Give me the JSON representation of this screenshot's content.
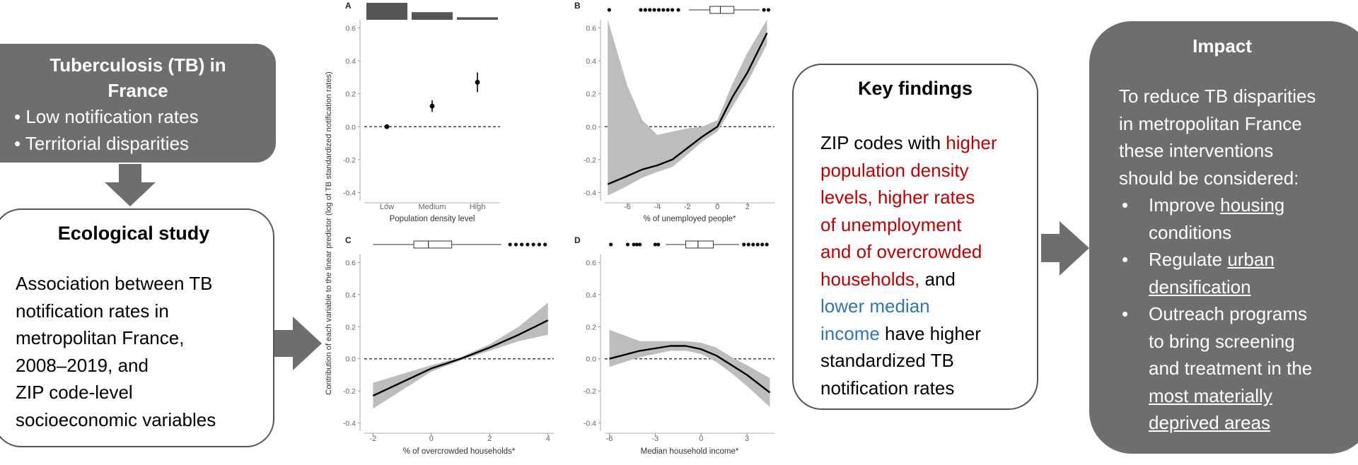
{
  "tb_box": {
    "title_line1": "Tuberculosis (TB) in",
    "title_line2": "France",
    "bullets": [
      "Low notification rates",
      "Territorial disparities"
    ]
  },
  "eco_box": {
    "title": "Ecological study",
    "body_lines": [
      "Association between TB",
      "notification rates in",
      "metropolitan France,",
      "2008–2019,  and",
      "ZIP code-level",
      "socioeconomic variables"
    ]
  },
  "findings_box": {
    "title": "Key findings",
    "lines": [
      [
        {
          "t": "ZIP codes with ",
          "c": "black"
        },
        {
          "t": "higher",
          "c": "red"
        }
      ],
      [
        {
          "t": "population density",
          "c": "red"
        }
      ],
      [
        {
          "t": "levels, higher rates",
          "c": "red"
        }
      ],
      [
        {
          "t": "of unemployment",
          "c": "red"
        }
      ],
      [
        {
          "t": "and of overcrowded",
          "c": "red"
        }
      ],
      [
        {
          "t": "households,",
          "c": "red"
        },
        {
          "t": " and",
          "c": "black"
        }
      ],
      [
        {
          "t": "lower median",
          "c": "blue"
        }
      ],
      [
        {
          "t": "income",
          "c": "blue"
        },
        {
          "t": " have higher",
          "c": "black"
        }
      ],
      [
        {
          "t": "standardized TB",
          "c": "black"
        }
      ],
      [
        {
          "t": "notification rates",
          "c": "black"
        }
      ]
    ]
  },
  "impact_box": {
    "title": "Impact",
    "intro_lines": [
      "To reduce TB disparities",
      "in metropolitan France",
      "these interventions",
      "should be considered:"
    ],
    "bullets": [
      {
        "lines": [
          [
            {
              "t": "Improve ",
              "u": false
            },
            {
              "t": "housing",
              "u": true
            }
          ],
          [
            {
              "t": "conditions",
              "u": false
            }
          ]
        ]
      },
      {
        "lines": [
          [
            {
              "t": "Regulate ",
              "u": false
            },
            {
              "t": "urban",
              "u": true
            }
          ],
          [
            {
              "t": "densification",
              "u": true
            }
          ]
        ]
      },
      {
        "lines": [
          [
            {
              "t": "Outreach programs",
              "u": false
            }
          ],
          [
            {
              "t": "to bring screening",
              "u": false
            }
          ],
          [
            {
              "t": "and treatment in the",
              "u": false
            }
          ],
          [
            {
              "t": "most materially",
              "u": true
            }
          ],
          [
            {
              "t": "deprived areas",
              "u": true
            }
          ]
        ]
      }
    ]
  },
  "y_axis_label": "Contribution of each variable to the linear predictor (log of TB standardized notification rates)",
  "colors": {
    "box_dark": "#6e6e6e",
    "arrow": "#6e6e6e",
    "band": "#bdbdbd",
    "line": "#000000",
    "red": "#c00000",
    "blue": "#2e75b6"
  },
  "chart_data": [
    {
      "panel": "A",
      "type": "scatter",
      "xlabel": "Population density level",
      "categories": [
        "Low",
        "Medium",
        "High"
      ],
      "values": [
        0.0,
        0.125,
        0.27
      ],
      "error_low": [
        0.0,
        0.09,
        0.21
      ],
      "error_high": [
        0.0,
        0.16,
        0.33
      ],
      "top_bar_heights": [
        1.0,
        0.45,
        0.15
      ],
      "ylim": [
        -0.45,
        0.65
      ],
      "yticks": [
        -0.4,
        -0.2,
        0.0,
        0.2,
        0.4,
        0.6
      ]
    },
    {
      "panel": "B",
      "type": "line",
      "xlabel": "% of unemployed people*",
      "xlim": [
        -7.5,
        3.8
      ],
      "xticks": [
        -6,
        -4,
        -2,
        0,
        2
      ],
      "ylim": [
        -0.45,
        0.65
      ],
      "yticks": [
        -0.4,
        -0.2,
        0.0,
        0.2,
        0.4,
        0.6
      ],
      "x": [
        -7.3,
        -6,
        -5,
        -4,
        -3,
        -2,
        -1,
        0,
        1,
        2,
        3.3
      ],
      "y": [
        -0.35,
        -0.3,
        -0.26,
        -0.235,
        -0.2,
        -0.13,
        -0.06,
        0.0,
        0.18,
        0.33,
        0.57
      ],
      "lower": [
        -0.42,
        -0.36,
        -0.31,
        -0.275,
        -0.245,
        -0.17,
        -0.09,
        -0.03,
        0.12,
        0.27,
        0.5
      ],
      "upper": [
        0.66,
        0.25,
        0.04,
        -0.05,
        -0.03,
        -0.01,
        0.0,
        0.04,
        0.26,
        0.45,
        0.66
      ],
      "box": {
        "min": -1.9,
        "q1": -0.5,
        "median": 0.2,
        "q3": 1.1,
        "max": 2.8
      },
      "outliers": [
        -7.2,
        -5.1,
        -4.8,
        -4.5,
        -4.2,
        -3.9,
        -3.6,
        -3.3,
        -3.0,
        -2.6,
        3.1,
        3.4
      ]
    },
    {
      "panel": "C",
      "type": "line",
      "xlabel": "% of overcrowded households*",
      "xlim": [
        -2.3,
        4.2
      ],
      "xticks": [
        -2,
        0,
        2,
        4
      ],
      "ylim": [
        -0.45,
        0.65
      ],
      "yticks": [
        -0.4,
        -0.2,
        0.0,
        0.2,
        0.4,
        0.6
      ],
      "x": [
        -2,
        0,
        1,
        2,
        3,
        4
      ],
      "y": [
        -0.23,
        -0.06,
        0.0,
        0.07,
        0.15,
        0.24
      ],
      "lower": [
        -0.31,
        -0.08,
        -0.01,
        0.05,
        0.11,
        0.15
      ],
      "upper": [
        -0.15,
        -0.04,
        0.01,
        0.09,
        0.2,
        0.35
      ],
      "box": {
        "min": -2.0,
        "q1": -0.6,
        "median": -0.1,
        "q3": 0.7,
        "max": 2.4
      },
      "outliers": [
        2.7,
        2.9,
        3.1,
        3.3,
        3.5,
        3.7,
        3.9
      ]
    },
    {
      "panel": "D",
      "type": "line",
      "xlabel": "Median household income*",
      "xlim": [
        -6.3,
        4.8
      ],
      "xticks": [
        -6,
        -3,
        0,
        3
      ],
      "ylim": [
        -0.45,
        0.65
      ],
      "yticks": [
        -0.4,
        -0.2,
        0.0,
        0.2,
        0.4,
        0.6
      ],
      "x": [
        -6,
        -4,
        -2,
        -1,
        0,
        1,
        2,
        3,
        4.5
      ],
      "y": [
        0.0,
        0.05,
        0.08,
        0.08,
        0.06,
        0.02,
        -0.04,
        -0.1,
        -0.21
      ],
      "lower": [
        -0.05,
        0.01,
        0.05,
        0.05,
        0.03,
        -0.02,
        -0.09,
        -0.17,
        -0.3
      ],
      "upper": [
        0.18,
        0.11,
        0.11,
        0.11,
        0.1,
        0.07,
        0.01,
        -0.04,
        -0.12
      ],
      "box": {
        "min": -2.3,
        "q1": -1.0,
        "median": -0.2,
        "q3": 0.8,
        "max": 2.5
      },
      "outliers": [
        -5.9,
        -4.8,
        -4.4,
        -4.2,
        -4.0,
        -3.0,
        -2.8,
        2.8,
        3.1,
        3.4,
        3.7,
        4.0,
        4.3
      ]
    }
  ]
}
